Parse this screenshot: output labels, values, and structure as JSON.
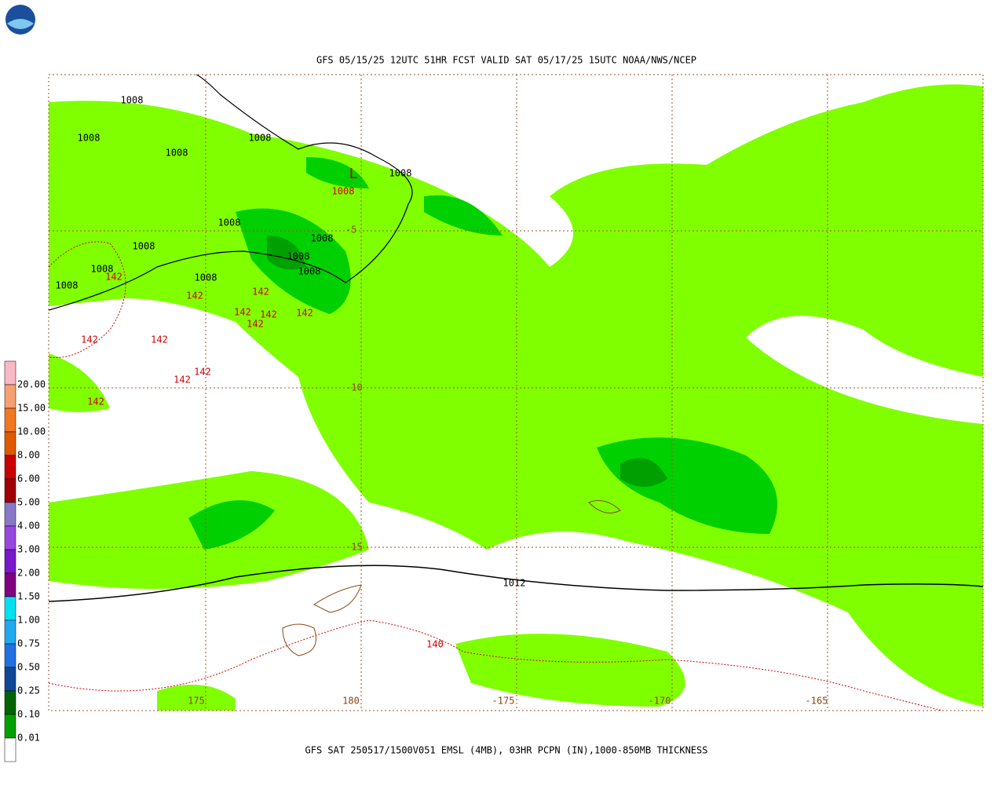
{
  "header": {
    "title": "GFS 05/15/25 12UTC 51HR FCST VALID SAT 05/17/25 15UTC NOAA/NWS/NCEP"
  },
  "footer": {
    "caption": "GFS SAT 250517/1500V051 EMSL (4MB), 03HR PCPN (IN),1000-850MB THICKNESS"
  },
  "legend": {
    "labels": [
      "20.00",
      "15.00",
      "10.00",
      "8.00",
      "6.00",
      "5.00",
      "4.00",
      "3.00",
      "2.00",
      "1.50",
      "1.00",
      "0.75",
      "0.50",
      "0.25",
      "0.10",
      "0.01"
    ]
  },
  "map": {
    "lat_labels": [
      "-5",
      "-10",
      "-15"
    ],
    "lon_labels": [
      "175",
      "180",
      "-175",
      "-170",
      "-165"
    ],
    "pressure_labels": [
      "1008",
      "1008",
      "1008",
      "1008",
      "1008",
      "1008",
      "1008",
      "1008",
      "1008",
      "1008",
      "1008",
      "1008",
      "1008",
      "1012"
    ],
    "thickness_labels": [
      "142",
      "142",
      "142",
      "142",
      "142",
      "142",
      "142",
      "142",
      "142",
      "142",
      "142",
      "142",
      "140"
    ],
    "center_labels": [
      "L",
      "1008"
    ]
  }
}
